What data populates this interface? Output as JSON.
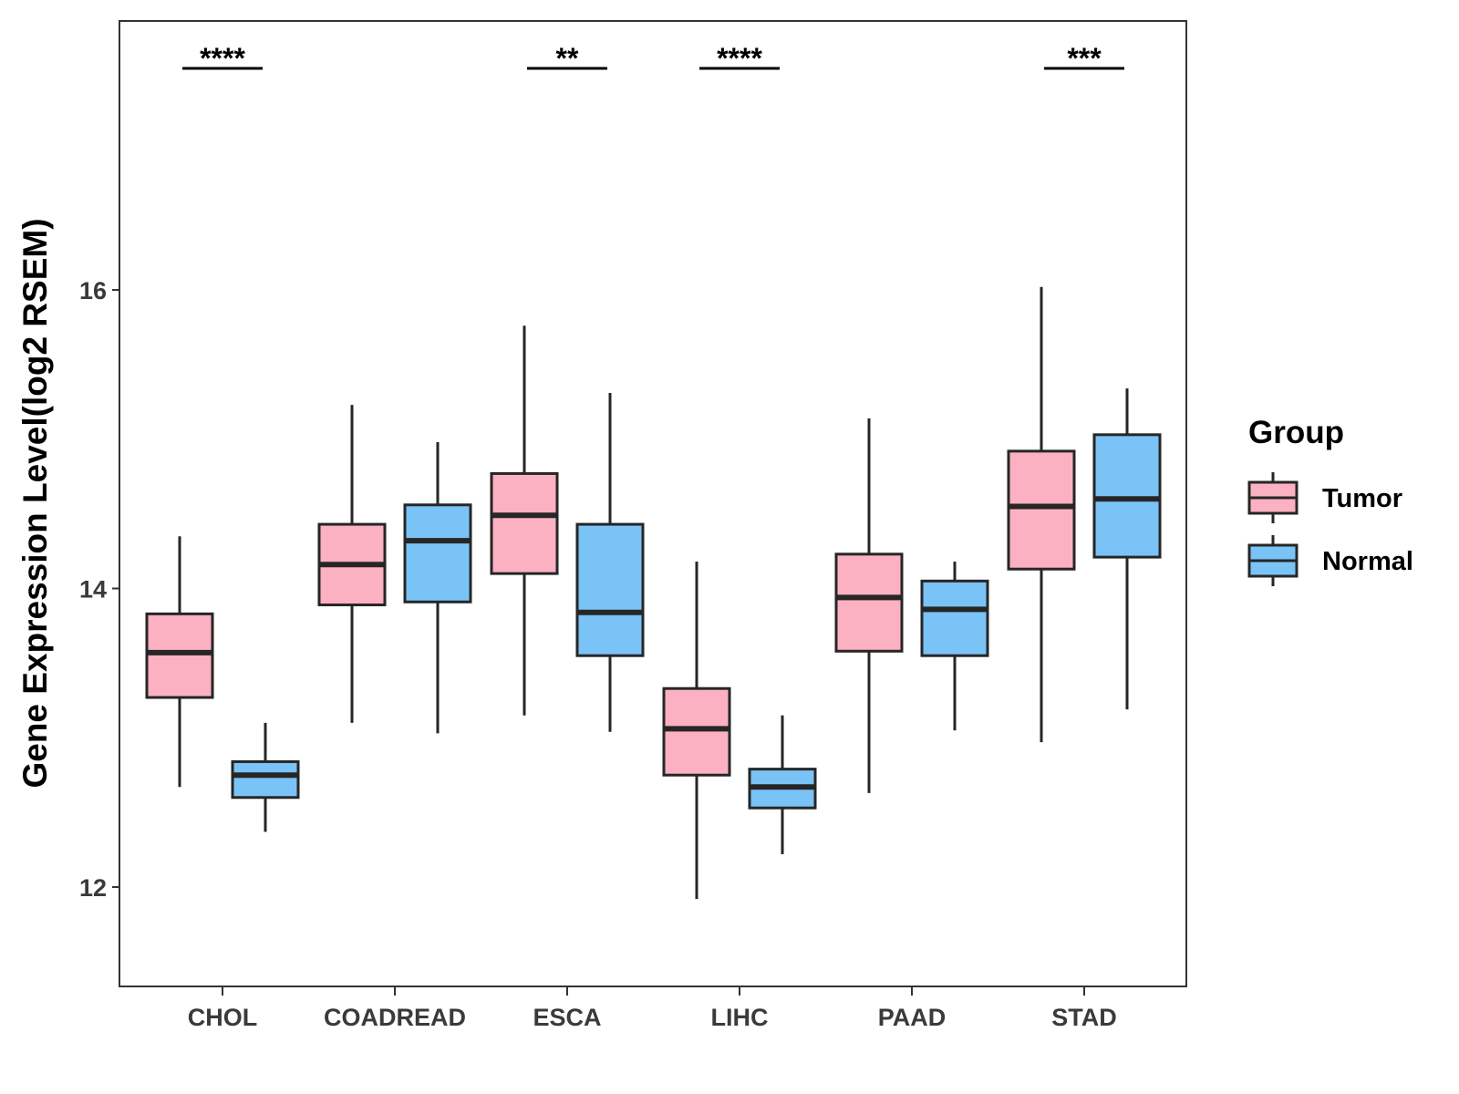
{
  "chart_data": {
    "type": "boxplot",
    "title": "",
    "xlabel": "",
    "ylabel": "Gene Expression Level(log2 RSEM)",
    "ylim": [
      11.35,
      17.82
    ],
    "yticks": [
      12,
      14,
      16
    ],
    "categories": [
      "CHOL",
      "COADREAD",
      "ESCA",
      "LIHC",
      "PAAD",
      "STAD"
    ],
    "legend": {
      "title": "Group",
      "position": "right"
    },
    "colors": {
      "Tumor": "#fbb1c2",
      "Normal": "#7ac3f7",
      "stroke": "#262626"
    },
    "series": [
      {
        "name": "Tumor",
        "boxes": [
          {
            "category": "CHOL",
            "min": 12.67,
            "q1": 13.27,
            "median": 13.57,
            "q3": 13.83,
            "max": 14.35
          },
          {
            "category": "COADREAD",
            "min": 13.1,
            "q1": 13.89,
            "median": 14.16,
            "q3": 14.43,
            "max": 15.23
          },
          {
            "category": "ESCA",
            "min": 13.15,
            "q1": 14.1,
            "median": 14.49,
            "q3": 14.77,
            "max": 15.76
          },
          {
            "category": "LIHC",
            "min": 11.92,
            "q1": 12.75,
            "median": 13.06,
            "q3": 13.33,
            "max": 14.18
          },
          {
            "category": "PAAD",
            "min": 12.63,
            "q1": 13.58,
            "median": 13.94,
            "q3": 14.23,
            "max": 15.14
          },
          {
            "category": "STAD",
            "min": 12.97,
            "q1": 14.13,
            "median": 14.55,
            "q3": 14.92,
            "max": 16.02
          }
        ]
      },
      {
        "name": "Normal",
        "boxes": [
          {
            "category": "CHOL",
            "min": 12.37,
            "q1": 12.6,
            "median": 12.75,
            "q3": 12.84,
            "max": 13.1
          },
          {
            "category": "COADREAD",
            "min": 13.03,
            "q1": 13.91,
            "median": 14.32,
            "q3": 14.56,
            "max": 14.98
          },
          {
            "category": "ESCA",
            "min": 13.04,
            "q1": 13.55,
            "median": 13.84,
            "q3": 14.43,
            "max": 15.31
          },
          {
            "category": "LIHC",
            "min": 12.22,
            "q1": 12.53,
            "median": 12.67,
            "q3": 12.79,
            "max": 13.15
          },
          {
            "category": "PAAD",
            "min": 13.05,
            "q1": 13.55,
            "median": 13.86,
            "q3": 14.05,
            "max": 14.18
          },
          {
            "category": "STAD",
            "min": 13.19,
            "q1": 14.21,
            "median": 14.6,
            "q3": 15.03,
            "max": 15.34
          }
        ]
      }
    ],
    "annotations": [
      {
        "category": "CHOL",
        "text": "****"
      },
      {
        "category": "ESCA",
        "text": "**"
      },
      {
        "category": "LIHC",
        "text": "****"
      },
      {
        "category": "STAD",
        "text": "***"
      }
    ]
  }
}
